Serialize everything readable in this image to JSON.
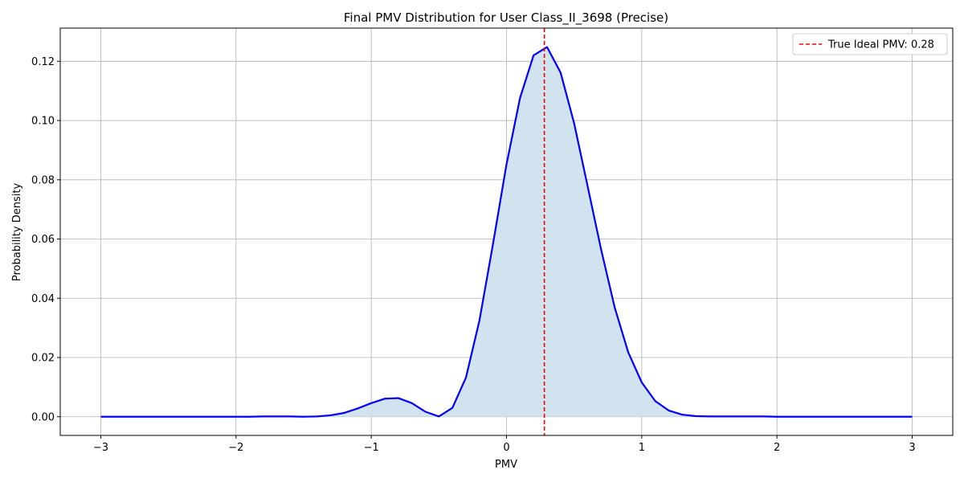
{
  "chart_data": {
    "type": "line",
    "title": "Final PMV Distribution for User Class_II_3698 (Precise)",
    "xlabel": "PMV",
    "ylabel": "Probability Density",
    "xlim": [
      -3.3,
      3.3
    ],
    "ylim": [
      -0.0063,
      0.1312
    ],
    "grid": true,
    "legend_position": "upper right",
    "x_ticks": [
      -3,
      -2,
      -1,
      0,
      1,
      2,
      3
    ],
    "x_tick_labels": [
      "−3",
      "−2",
      "−1",
      "0",
      "1",
      "2",
      "3"
    ],
    "y_ticks": [
      0.0,
      0.02,
      0.04,
      0.06,
      0.08,
      0.1,
      0.12
    ],
    "y_tick_labels": [
      "0.00",
      "0.02",
      "0.04",
      "0.06",
      "0.08",
      "0.10",
      "0.12"
    ],
    "series": [
      {
        "x": [
          -3.0,
          -2.9,
          -2.8,
          -2.7,
          -2.6,
          -2.5,
          -2.4,
          -2.3,
          -2.2,
          -2.1,
          -2.0,
          -1.9,
          -1.8,
          -1.7,
          -1.6,
          -1.5,
          -1.4,
          -1.3,
          -1.2,
          -1.1,
          -1.0,
          -0.9,
          -0.8,
          -0.7,
          -0.6,
          -0.5,
          -0.4,
          -0.3,
          -0.2,
          -0.1,
          0.0,
          0.1,
          0.2,
          0.3,
          0.4,
          0.5,
          0.6,
          0.7,
          0.8,
          0.9,
          1.0,
          1.1,
          1.2,
          1.3,
          1.4,
          1.5,
          1.6,
          1.7,
          1.8,
          1.9,
          2.0,
          2.1,
          2.2,
          2.3,
          2.4,
          2.5,
          2.6,
          2.7,
          2.8,
          2.9,
          3.0
        ],
        "y": [
          0.0,
          0.0,
          0.0,
          0.0,
          0.0,
          0.0,
          0.0,
          0.0,
          0.0,
          0.0,
          0.0,
          0.0,
          0.0001,
          0.0001,
          0.0001,
          0.0,
          0.0001,
          0.0005,
          0.0013,
          0.0028,
          0.0046,
          0.0061,
          0.0063,
          0.0046,
          0.0017,
          0.0001,
          0.003,
          0.0132,
          0.0325,
          0.0583,
          0.0852,
          0.1076,
          0.122,
          0.1248,
          0.1162,
          0.0991,
          0.0778,
          0.0564,
          0.0369,
          0.0218,
          0.0116,
          0.0053,
          0.0021,
          0.0007,
          0.0002,
          0.0001,
          0.0001,
          0.0001,
          0.0001,
          0.0001,
          0.0,
          0.0,
          0.0,
          0.0,
          0.0,
          0.0,
          0.0,
          0.0,
          0.0,
          0.0,
          0.0
        ],
        "line_color": "#0000ff",
        "fill_color": "#d2e3f0"
      }
    ],
    "reference_line": {
      "x": 0.28,
      "label": "True Ideal PMV: 0.28",
      "color": "#ff0000",
      "style": "dashed"
    }
  },
  "colors": {
    "grid": "#b0b0b0",
    "axes": "#000000",
    "background": "#ffffff"
  }
}
